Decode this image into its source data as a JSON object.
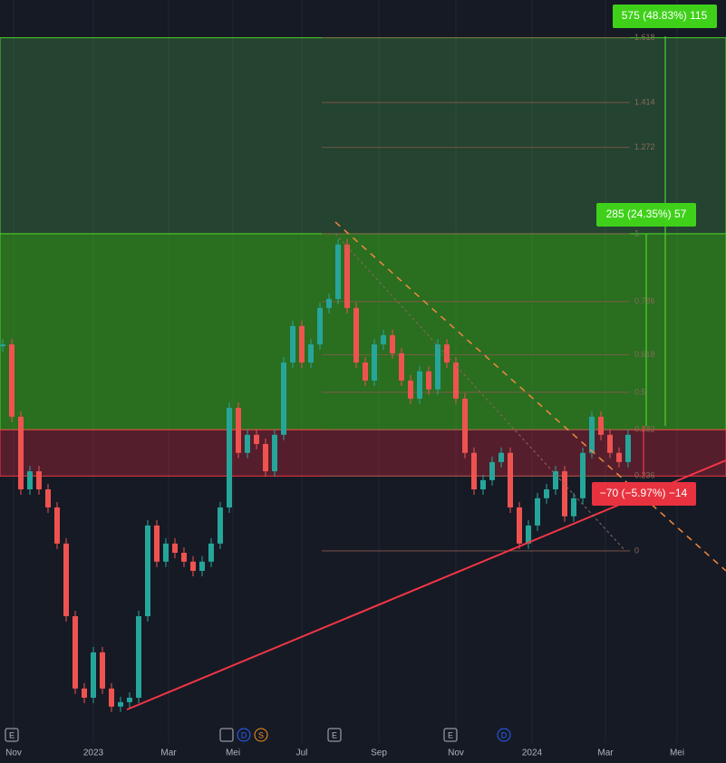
{
  "chart_data": {
    "type": "candlestick",
    "ylim": [
      -0.606,
      1.737
    ],
    "yticks": [
      1.618,
      1.414,
      1.272,
      1,
      0.786,
      0.618,
      0.5,
      0.382,
      0.236,
      0
    ],
    "values": [
      0.651,
      0.423,
      0.194,
      0.251,
      0.194,
      0.137,
      0.023,
      -0.206,
      -0.434,
      -0.463,
      -0.32,
      -0.434,
      -0.491,
      -0.477,
      -0.463,
      -0.206,
      0.08,
      -0.034,
      0.023,
      -0.006,
      -0.034,
      -0.063,
      -0.034,
      0.023,
      0.137,
      0.451,
      0.309,
      0.366,
      0.337,
      0.251,
      0.366,
      0.594,
      0.709,
      0.594,
      0.651,
      0.766,
      0.794,
      0.966,
      0.766,
      0.594,
      0.537,
      0.651,
      0.68,
      0.623,
      0.537,
      0.48,
      0.566,
      0.509,
      0.651,
      0.594,
      0.48,
      0.309,
      0.194,
      0.223,
      0.28,
      0.309,
      0.137,
      0.023,
      0.08,
      0.166,
      0.194,
      0.251,
      0.109,
      0.166,
      0.309,
      0.423,
      0.366,
      0.309,
      0.28,
      0.366
    ],
    "x_labels": [
      "Nov",
      "2023",
      "Mar",
      "Mei",
      "Jul",
      "Sep",
      "Nov",
      "2024",
      "Mar",
      "Mei"
    ],
    "targets": [
      "575 (48.83%) 115",
      "285 (24.35%) 57",
      "−70 (−5.97%) −14"
    ],
    "events": [
      "E",
      "D",
      "S",
      "E",
      "E",
      "D"
    ]
  }
}
